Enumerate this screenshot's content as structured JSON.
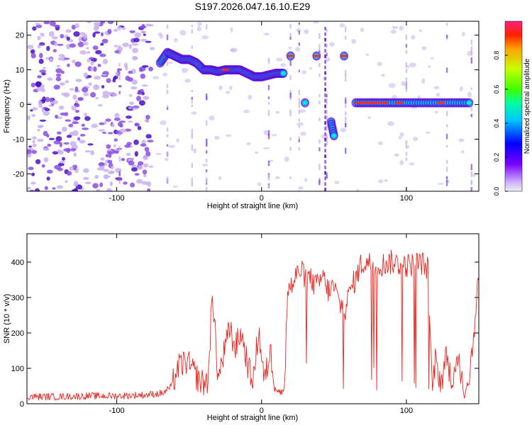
{
  "title": "S197.2026.047.16.10.E29",
  "colors": {
    "snr_line": "#e8251f",
    "spec_faint": "#c9b2ee",
    "spec_mid": "#8a4fe0",
    "spec_strong": "#4a10c8"
  },
  "chart_data": [
    {
      "type": "heatmap",
      "name": "spectrogram",
      "xlabel": "Height of straight line (km)",
      "ylabel": "Frequency (Hz)",
      "xlim": [
        -162,
        150
      ],
      "ylim": [
        -25,
        24
      ],
      "x_ticks": [
        -100,
        0,
        100
      ],
      "y_ticks": [
        -20,
        -10,
        0,
        10,
        20
      ],
      "grid": false,
      "colorbar": {
        "label": "Normalized spectral amplitude",
        "ticks": [
          "0.0",
          "0.2",
          "0.4",
          "0.6",
          "0.8"
        ],
        "range": [
          0,
          1
        ],
        "colormap": "rainbow (purple to red)"
      },
      "ridge": [
        {
          "x": -70,
          "y": 12
        },
        {
          "x": -65,
          "y": 15
        },
        {
          "x": -60,
          "y": 14
        },
        {
          "x": -55,
          "y": 13
        },
        {
          "x": -50,
          "y": 13
        },
        {
          "x": -45,
          "y": 12
        },
        {
          "x": -40,
          "y": 10
        },
        {
          "x": -35,
          "y": 10
        },
        {
          "x": -30,
          "y": 9.5
        },
        {
          "x": -25,
          "y": 10
        },
        {
          "x": -20,
          "y": 10
        },
        {
          "x": -15,
          "y": 10
        },
        {
          "x": -10,
          "y": 9
        },
        {
          "x": -5,
          "y": 8
        },
        {
          "x": 0,
          "y": 8
        },
        {
          "x": 5,
          "y": 8.5
        },
        {
          "x": 10,
          "y": 9
        },
        {
          "x": 15,
          "y": 9
        },
        {
          "x": 20,
          "y": 14
        },
        {
          "x": 30,
          "y": 0.5
        },
        {
          "x": 38,
          "y": 14
        },
        {
          "x": 48,
          "y": -5
        },
        {
          "x": 50,
          "y": -9
        },
        {
          "x": 57,
          "y": 14
        },
        {
          "x": 65,
          "y": 0.5
        },
        {
          "x": 75,
          "y": 0.5
        },
        {
          "x": 85,
          "y": 0.5
        },
        {
          "x": 95,
          "y": 0.5
        },
        {
          "x": 105,
          "y": 0.5
        },
        {
          "x": 115,
          "y": 0.5
        },
        {
          "x": 125,
          "y": 0.5
        },
        {
          "x": 135,
          "y": 0.5
        },
        {
          "x": 145,
          "y": 0.5
        }
      ]
    },
    {
      "type": "line",
      "name": "snr",
      "xlabel": "Height of straight line (km)",
      "ylabel": "SNR (10 * v/v)",
      "xlim": [
        -162,
        150
      ],
      "ylim": [
        0,
        480
      ],
      "x_ticks": [
        -100,
        0,
        100
      ],
      "y_ticks": [
        0,
        100,
        200,
        300,
        400
      ],
      "grid": false,
      "series": [
        {
          "x": [
            -162,
            -140,
            -120,
            -100,
            -80,
            -68,
            -62,
            -58,
            -52,
            -47,
            -42,
            -37,
            -34,
            -30,
            -26,
            -22,
            -18,
            -14,
            -10,
            -6,
            -2,
            2,
            6,
            10,
            14,
            16,
            18,
            22,
            26,
            30,
            34,
            38,
            42,
            46,
            50,
            54,
            58,
            62,
            66,
            68,
            72,
            80,
            90,
            100,
            110,
            115,
            118,
            120,
            124,
            128,
            132,
            136,
            140,
            144,
            148,
            150
          ],
          "y": [
            20,
            20,
            22,
            22,
            25,
            30,
            50,
            100,
            120,
            90,
            60,
            60,
            320,
            70,
            140,
            210,
            160,
            200,
            120,
            50,
            210,
            60,
            150,
            40,
            30,
            60,
            320,
            340,
            380,
            360,
            350,
            330,
            360,
            320,
            330,
            280,
            270,
            330,
            360,
            390,
            400,
            390,
            400,
            390,
            400,
            380,
            30,
            120,
            60,
            140,
            40,
            140,
            20,
            100,
            260,
            380
          ]
        }
      ]
    }
  ]
}
